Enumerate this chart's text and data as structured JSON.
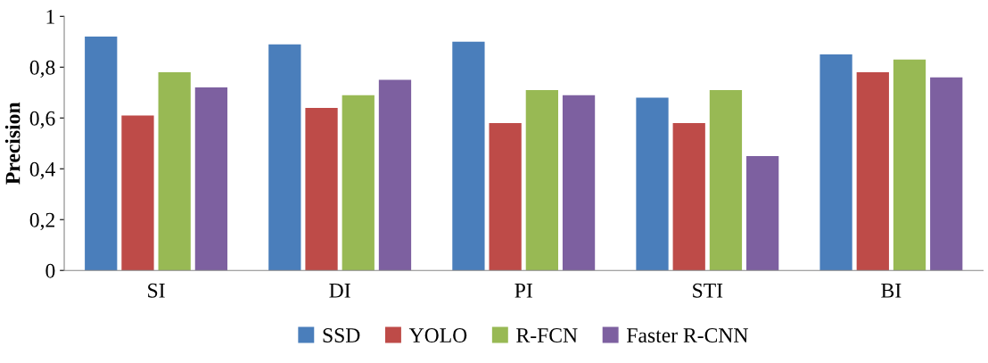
{
  "chart_data": {
    "type": "bar",
    "ylabel": "Precision",
    "categories": [
      "SI",
      "DI",
      "PI",
      "STI",
      "BI"
    ],
    "series": [
      {
        "name": "SSD",
        "color": "#4a7ebb",
        "values": [
          0.92,
          0.89,
          0.9,
          0.68,
          0.85
        ]
      },
      {
        "name": "YOLO",
        "color": "#be4b48",
        "values": [
          0.61,
          0.64,
          0.58,
          0.58,
          0.78
        ]
      },
      {
        "name": "R-FCN",
        "color": "#98b954",
        "values": [
          0.78,
          0.69,
          0.71,
          0.71,
          0.83
        ]
      },
      {
        "name": "Faster R-CNN",
        "color": "#7d60a0",
        "values": [
          0.72,
          0.75,
          0.69,
          0.45,
          0.76
        ]
      }
    ],
    "ylim": [
      0,
      1
    ],
    "yticks": [
      0,
      {
        "value": 0.2,
        "label": "0,2"
      },
      {
        "value": 0.4,
        "label": "0,4"
      },
      {
        "value": 0.6,
        "label": "0,6"
      },
      {
        "value": 0.8,
        "label": "0,8"
      },
      1
    ],
    "grid": false,
    "legend": "bottom"
  }
}
